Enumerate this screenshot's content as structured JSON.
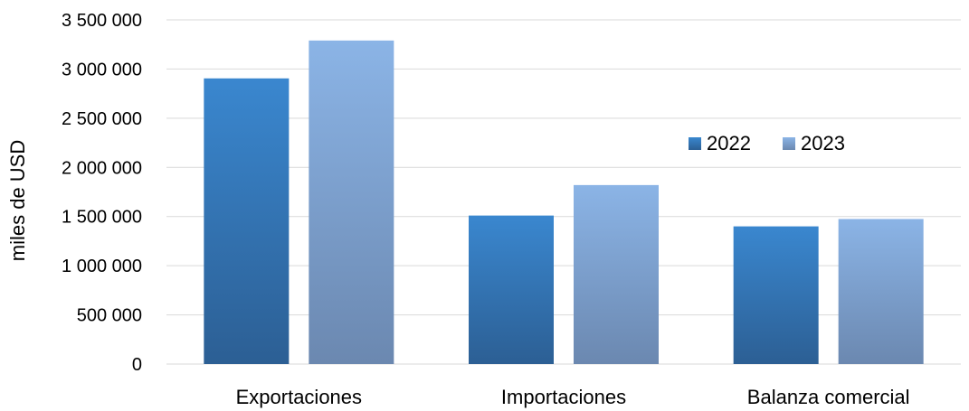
{
  "chart_data": {
    "type": "bar",
    "title": "",
    "xlabel": "",
    "ylabel": "miles de USD",
    "categories": [
      "Exportaciones",
      "Importaciones",
      "Balanza comercial"
    ],
    "series": [
      {
        "name": "2022",
        "values": [
          2905000,
          1510000,
          1400000
        ],
        "color_top": "#3a87cf",
        "color_bottom": "#2c5f94"
      },
      {
        "name": "2023",
        "values": [
          3290000,
          1820000,
          1475000
        ],
        "color_top": "#8bb4e6",
        "color_bottom": "#6b88b0"
      }
    ],
    "ylim": [
      0,
      3500000
    ],
    "yticks": [
      0,
      500000,
      1000000,
      1500000,
      2000000,
      2500000,
      3000000,
      3500000
    ],
    "ytick_labels": [
      "0",
      "500 000",
      "1 000 000",
      "1 500 000",
      "2 000 000",
      "2 500 000",
      "3 000 000",
      "3 500 000"
    ],
    "grid": true,
    "legend_position": "right"
  }
}
